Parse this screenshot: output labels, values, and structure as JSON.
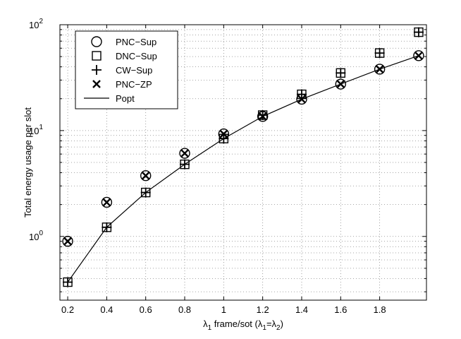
{
  "chart_data": {
    "type": "scatter",
    "title": "",
    "xlabel": {
      "lambda": "λ",
      "sub1": "1",
      "mid": " frame/sot (",
      "lambda2": "λ",
      "sub2": "1",
      "eq": "=",
      "lambda3": "λ",
      "sub3": "2",
      "close": ")"
    },
    "ylabel": "Total energy usage per slot",
    "xlim": [
      0.16,
      2.04
    ],
    "ylim": [
      0.25,
      100
    ],
    "y_scale": "log",
    "grid": true,
    "x_ticks": [
      {
        "value": 0.2,
        "label": "0.2"
      },
      {
        "value": 0.4,
        "label": "0.4"
      },
      {
        "value": 0.6,
        "label": "0.6"
      },
      {
        "value": 0.8,
        "label": "0.8"
      },
      {
        "value": 1.0,
        "label": "1"
      },
      {
        "value": 1.2,
        "label": "1.2"
      },
      {
        "value": 1.4,
        "label": "1.4"
      },
      {
        "value": 1.6,
        "label": "1.6"
      },
      {
        "value": 1.8,
        "label": "1.8"
      }
    ],
    "y_ticks": [
      {
        "value": 1,
        "base": "10",
        "exp": "0"
      },
      {
        "value": 10,
        "base": "10",
        "exp": "1"
      },
      {
        "value": 100,
        "base": "10",
        "exp": "2"
      }
    ],
    "legend_position": "top-left",
    "x": [
      0.2,
      0.4,
      0.6,
      0.8,
      1.0,
      1.2,
      1.4,
      1.6,
      1.8,
      2.0
    ],
    "series": [
      {
        "name": "PNC−Sup",
        "marker": "circle",
        "values": [
          0.9,
          2.1,
          3.75,
          6.1,
          9.3,
          13.6,
          19.8,
          27.5,
          38,
          51
        ]
      },
      {
        "name": "DNC−Sup",
        "marker": "square",
        "values": [
          0.37,
          1.22,
          2.6,
          4.8,
          8.4,
          14,
          22,
          35,
          54,
          85
        ]
      },
      {
        "name": "CW−Sup",
        "marker": "plus",
        "values": [
          0.37,
          1.22,
          2.6,
          4.8,
          8.4,
          14,
          22,
          35,
          54,
          85
        ]
      },
      {
        "name": "PNC−ZP",
        "marker": "x",
        "values": [
          0.9,
          2.1,
          3.75,
          6.1,
          9.3,
          13.6,
          19.8,
          27.5,
          38,
          51
        ]
      },
      {
        "name": "Popt",
        "marker": "line",
        "values": [
          0.37,
          1.22,
          2.6,
          4.8,
          8.4,
          13.6,
          19.8,
          27.5,
          38,
          51
        ]
      }
    ]
  }
}
